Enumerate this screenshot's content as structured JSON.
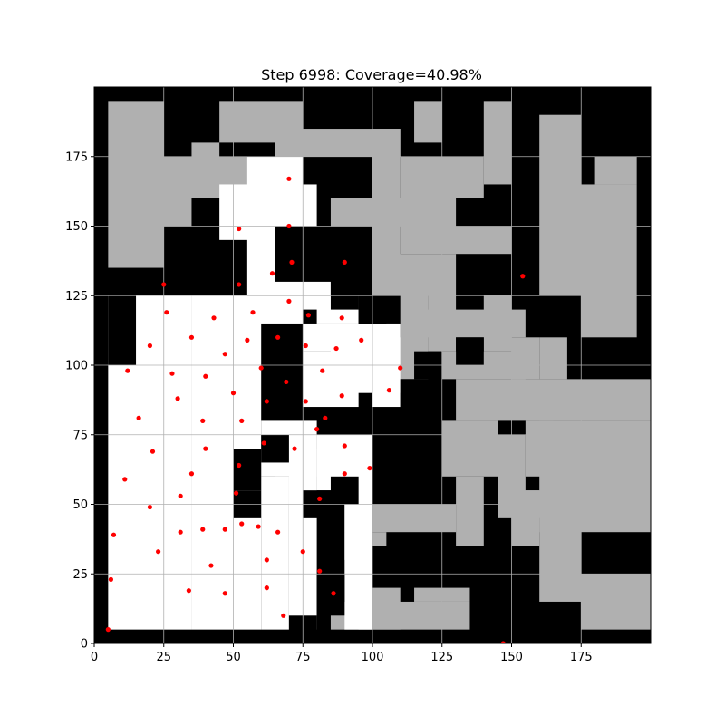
{
  "chart_data": {
    "type": "heatmap",
    "title": "Step 6998: Coverage=40.98%",
    "xlim": [
      0,
      200
    ],
    "ylim": [
      0,
      200
    ],
    "grid": true,
    "x_ticks": [
      0,
      25,
      50,
      75,
      100,
      125,
      150,
      175
    ],
    "y_ticks": [
      0,
      25,
      50,
      75,
      100,
      125,
      150,
      175
    ],
    "colors": {
      "obstacle": "#000000",
      "unexplored": "#b0b0b0",
      "covered": "#ffffff",
      "agent": "#ff0000",
      "grid": "#b0b0b0"
    },
    "regions": {
      "obstacle": [
        [
          0,
          200,
          0,
          200
        ]
      ],
      "unexplored": [
        [
          5,
          25,
          135,
          195
        ],
        [
          25,
          35,
          150,
          165
        ],
        [
          25,
          65,
          160,
          175
        ],
        [
          35,
          45,
          165,
          180
        ],
        [
          45,
          75,
          180,
          195
        ],
        [
          65,
          110,
          175,
          185
        ],
        [
          100,
          110,
          130,
          185
        ],
        [
          110,
          140,
          160,
          175
        ],
        [
          85,
          130,
          150,
          160
        ],
        [
          110,
          150,
          140,
          150
        ],
        [
          100,
          130,
          125,
          140
        ],
        [
          110,
          120,
          95,
          125
        ],
        [
          120,
          130,
          105,
          125
        ],
        [
          140,
          150,
          105,
          125
        ],
        [
          115,
          155,
          110,
          120
        ],
        [
          150,
          160,
          95,
          110
        ],
        [
          130,
          200,
          80,
          95
        ],
        [
          125,
          155,
          95,
          105
        ],
        [
          160,
          170,
          95,
          110
        ],
        [
          125,
          145,
          60,
          80
        ],
        [
          145,
          155,
          50,
          75
        ],
        [
          160,
          200,
          40,
          80
        ],
        [
          155,
          165,
          60,
          80
        ],
        [
          130,
          140,
          35,
          60
        ],
        [
          150,
          160,
          35,
          55
        ],
        [
          90,
          130,
          40,
          50
        ],
        [
          90,
          105,
          30,
          40
        ],
        [
          95,
          110,
          5,
          25
        ],
        [
          85,
          135,
          5,
          15
        ],
        [
          115,
          135,
          15,
          25
        ],
        [
          160,
          175,
          15,
          45
        ],
        [
          175,
          200,
          5,
          25
        ],
        [
          145,
          200,
          45,
          55
        ],
        [
          160,
          175,
          150,
          190
        ],
        [
          175,
          195,
          150,
          165
        ],
        [
          180,
          195,
          165,
          175
        ],
        [
          160,
          195,
          125,
          150
        ],
        [
          175,
          195,
          110,
          125
        ],
        [
          115,
          125,
          180,
          195
        ],
        [
          140,
          150,
          165,
          195
        ],
        [
          65,
          75,
          50,
          60
        ]
      ],
      "covered": [
        [
          5,
          35,
          5,
          125
        ],
        [
          35,
          60,
          5,
          125
        ],
        [
          60,
          70,
          5,
          60
        ],
        [
          70,
          80,
          5,
          70
        ],
        [
          80,
          100,
          55,
          75
        ],
        [
          90,
          100,
          5,
          75
        ],
        [
          55,
          75,
          115,
          175
        ],
        [
          45,
          60,
          145,
          165
        ],
        [
          70,
          80,
          150,
          165
        ],
        [
          60,
          80,
          60,
          80
        ],
        [
          75,
          95,
          85,
          105
        ],
        [
          85,
          110,
          90,
          115
        ],
        [
          100,
          110,
          85,
          95
        ],
        [
          75,
          95,
          105,
          115
        ],
        [
          65,
          85,
          120,
          130
        ],
        [
          80,
          95,
          115,
          125
        ],
        [
          95,
          110,
          95,
          110
        ]
      ],
      "obstacle_overlay": [
        [
          5,
          15,
          100,
          125
        ],
        [
          50,
          60,
          45,
          55
        ],
        [
          50,
          60,
          55,
          70
        ],
        [
          60,
          70,
          65,
          75
        ],
        [
          75,
          85,
          45,
          55
        ],
        [
          85,
          95,
          50,
          60
        ],
        [
          70,
          80,
          0,
          10
        ],
        [
          80,
          90,
          10,
          25
        ],
        [
          65,
          75,
          130,
          150
        ],
        [
          85,
          95,
          120,
          145
        ],
        [
          95,
          105,
          115,
          125
        ],
        [
          100,
          110,
          55,
          65
        ],
        [
          105,
          115,
          70,
          80
        ],
        [
          110,
          125,
          85,
          95
        ],
        [
          115,
          125,
          95,
          105
        ],
        [
          130,
          140,
          100,
          110
        ],
        [
          100,
          150,
          20,
          35
        ]
      ]
    },
    "agents": {
      "x": [
        70,
        52,
        70,
        64,
        71,
        90,
        52,
        25,
        70,
        26,
        43,
        57,
        77,
        89,
        20,
        35,
        55,
        66,
        76,
        87,
        96,
        110,
        12,
        28,
        40,
        47,
        60,
        69,
        82,
        106,
        16,
        30,
        50,
        62,
        76,
        89,
        39,
        53,
        80,
        83,
        21,
        40,
        61,
        72,
        90,
        11,
        35,
        52,
        90,
        99,
        20,
        31,
        51,
        81,
        7,
        31,
        39,
        47,
        53,
        59,
        66,
        23,
        75,
        42,
        62,
        81,
        6,
        34,
        47,
        62,
        86,
        68,
        5,
        147,
        154
      ],
      "y": [
        167,
        149,
        150,
        133,
        137,
        137,
        129,
        129,
        123,
        119,
        117,
        119,
        118,
        117,
        107,
        110,
        109,
        110,
        107,
        106,
        109,
        99,
        98,
        97,
        96,
        104,
        99,
        94,
        98,
        91,
        81,
        88,
        90,
        87,
        87,
        89,
        80,
        80,
        77,
        81,
        69,
        70,
        72,
        70,
        71,
        59,
        61,
        64,
        61,
        63,
        49,
        53,
        54,
        52,
        39,
        40,
        41,
        41,
        43,
        42,
        40,
        33,
        33,
        28,
        30,
        26,
        23,
        19,
        18,
        20,
        18,
        10,
        5,
        0,
        132
      ]
    }
  }
}
